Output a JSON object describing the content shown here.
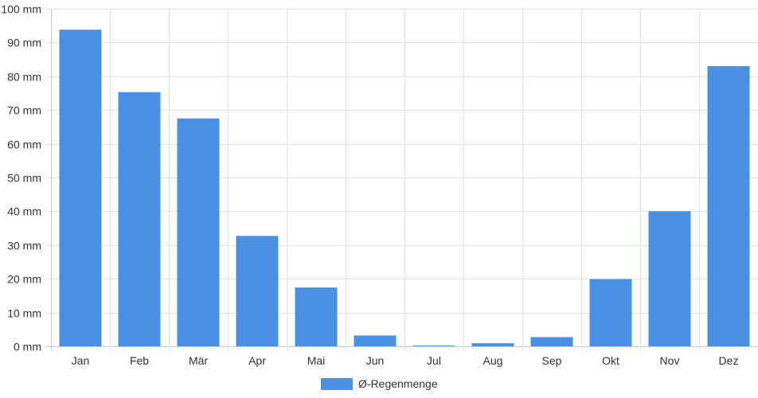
{
  "chart_data": {
    "type": "bar",
    "categories": [
      "Jan",
      "Feb",
      "Mär",
      "Apr",
      "Mai",
      "Jun",
      "Jul",
      "Aug",
      "Sep",
      "Okt",
      "Nov",
      "Dez"
    ],
    "series": [
      {
        "name": "Ø-Regenmenge",
        "values": [
          93.8,
          75.3,
          67.5,
          32.7,
          17.4,
          3.2,
          0.2,
          0.9,
          2.7,
          19.9,
          40.0,
          83.0
        ],
        "color": "#4a90e2"
      }
    ],
    "y_unit": " mm",
    "ylim": [
      0,
      100
    ],
    "y_step": 10,
    "grid": true,
    "legend_position": "bottom"
  }
}
